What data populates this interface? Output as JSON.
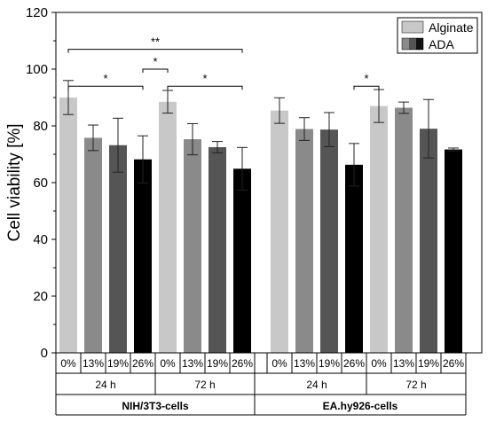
{
  "chart_data": {
    "type": "bar",
    "ylabel": "Cell viability [%]",
    "xlabel": "",
    "ylim": [
      0,
      120
    ],
    "yticks": [
      "0",
      "20",
      "40",
      "60",
      "80",
      "100",
      "120"
    ],
    "grid": false,
    "legend_position": "top-right",
    "legend": [
      {
        "label": "Alginate",
        "kind": "solid",
        "color": "#c8c8c8"
      },
      {
        "label": "ADA",
        "kind": "gradient",
        "colors": [
          "#8a8a8a",
          "#555555",
          "#111111"
        ]
      }
    ],
    "categories": [
      "0%",
      "13%",
      "19%",
      "26%",
      "0%",
      "13%",
      "19%",
      "26%",
      "0%",
      "13%",
      "19%",
      "26%",
      "0%",
      "13%",
      "19%",
      "26%"
    ],
    "values": [
      90,
      75.8,
      73.2,
      68.2,
      88.5,
      75.3,
      72.5,
      64.9,
      85.4,
      78.9,
      78.7,
      66.3,
      87.0,
      86.4,
      79.0,
      71.7
    ],
    "errors": [
      6,
      4.5,
      9.5,
      8.3,
      4.0,
      5.5,
      2.0,
      7.5,
      4.5,
      4.0,
      6.0,
      7.5,
      5.8,
      2.0,
      10.3,
      0.5
    ],
    "bar_colors": [
      "#c8c8c8",
      "#8a8a8a",
      "#555555",
      "#000000",
      "#c8c8c8",
      "#8a8a8a",
      "#555555",
      "#000000",
      "#c8c8c8",
      "#8a8a8a",
      "#555555",
      "#000000",
      "#c8c8c8",
      "#8a8a8a",
      "#555555",
      "#000000"
    ],
    "time_groups": [
      {
        "label": "24 h",
        "from": 0,
        "to": 3
      },
      {
        "label": "72 h",
        "from": 4,
        "to": 7
      },
      {
        "label": "24 h",
        "from": 8,
        "to": 11
      },
      {
        "label": "72 h",
        "from": 12,
        "to": 15
      }
    ],
    "cell_groups": [
      {
        "label": "NIH/3T3-cells",
        "from": 0,
        "to": 7
      },
      {
        "label": "EA.hy926-cells",
        "from": 8,
        "to": 15
      }
    ],
    "significance": [
      {
        "from": 0,
        "to": 7,
        "label": "**",
        "y": 107
      },
      {
        "from": 3,
        "to": 4,
        "label": "*",
        "y": 100
      },
      {
        "from": 0,
        "to": 3,
        "label": "*",
        "y": 94
      },
      {
        "from": 4,
        "to": 7,
        "label": "*",
        "y": 94
      },
      {
        "from": 11,
        "to": 12,
        "label": "*",
        "y": 94
      }
    ]
  }
}
